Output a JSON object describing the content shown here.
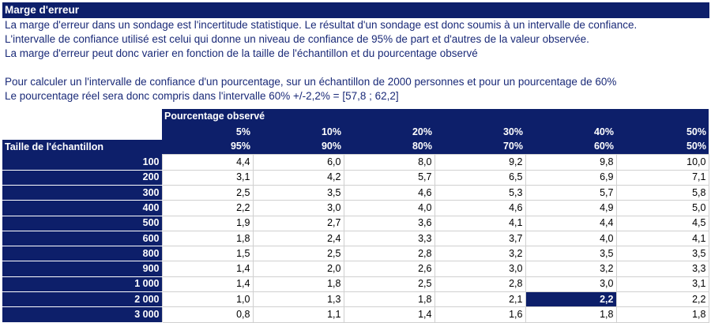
{
  "title": "Marge d'erreur",
  "paragraphs": [
    "La marge d'erreur dans un sondage est l'incertitude statistique. Le résultat d'un sondage est donc soumis à un intervalle de confiance.",
    "L'intervalle de confiance utilisé est celui qui donne un niveau de confiance de 95% de part et d'autres de la valeur observée.",
    "La marge d'erreur peut donc varier en fonction de la taille de l'échantillon et du pourcentage observé",
    "Pour calculer un l'intervalle de confiance d'un pourcentage, sur un échantillon de 2000 personnes et pour un pourcentage de 60%",
    "Le pourcentage réel sera donc compris dans l'intervalle 60% +/-2,2% = [57,8 ; 62,2]"
  ],
  "table": {
    "group_header": "Pourcentage observé",
    "row_header": "Taille de l'échantillon",
    "pct_top": [
      "5%",
      "10%",
      "20%",
      "30%",
      "40%",
      "50%"
    ],
    "pct_bottom": [
      "95%",
      "90%",
      "80%",
      "70%",
      "60%",
      "50%"
    ],
    "rows": [
      {
        "size": "100",
        "values": [
          "4,4",
          "6,0",
          "8,0",
          "9,2",
          "9,8",
          "10,0"
        ]
      },
      {
        "size": "200",
        "values": [
          "3,1",
          "4,2",
          "5,7",
          "6,5",
          "6,9",
          "7,1"
        ]
      },
      {
        "size": "300",
        "values": [
          "2,5",
          "3,5",
          "4,6",
          "5,3",
          "5,7",
          "5,8"
        ]
      },
      {
        "size": "400",
        "values": [
          "2,2",
          "3,0",
          "4,0",
          "4,6",
          "4,9",
          "5,0"
        ]
      },
      {
        "size": "500",
        "values": [
          "1,9",
          "2,7",
          "3,6",
          "4,1",
          "4,4",
          "4,5"
        ]
      },
      {
        "size": "600",
        "values": [
          "1,8",
          "2,4",
          "3,3",
          "3,7",
          "4,0",
          "4,1"
        ]
      },
      {
        "size": "800",
        "values": [
          "1,5",
          "2,5",
          "2,8",
          "3,2",
          "3,5",
          "3,5"
        ]
      },
      {
        "size": "900",
        "values": [
          "1,4",
          "2,0",
          "2,6",
          "3,0",
          "3,2",
          "3,3"
        ]
      },
      {
        "size": "1 000",
        "values": [
          "1,4",
          "1,8",
          "2,5",
          "2,8",
          "3,0",
          "3,1"
        ]
      },
      {
        "size": "2 000",
        "values": [
          "1,0",
          "1,3",
          "1,8",
          "2,1",
          "2,2",
          "2,2"
        ]
      },
      {
        "size": "3 000",
        "values": [
          "0,8",
          "1,1",
          "1,4",
          "1,6",
          "1,8",
          "1,8"
        ]
      }
    ],
    "highlight": {
      "row": 9,
      "col": 4
    },
    "colors": {
      "header_bg": "#0d1f6a",
      "header_text": "#ffffff"
    }
  }
}
